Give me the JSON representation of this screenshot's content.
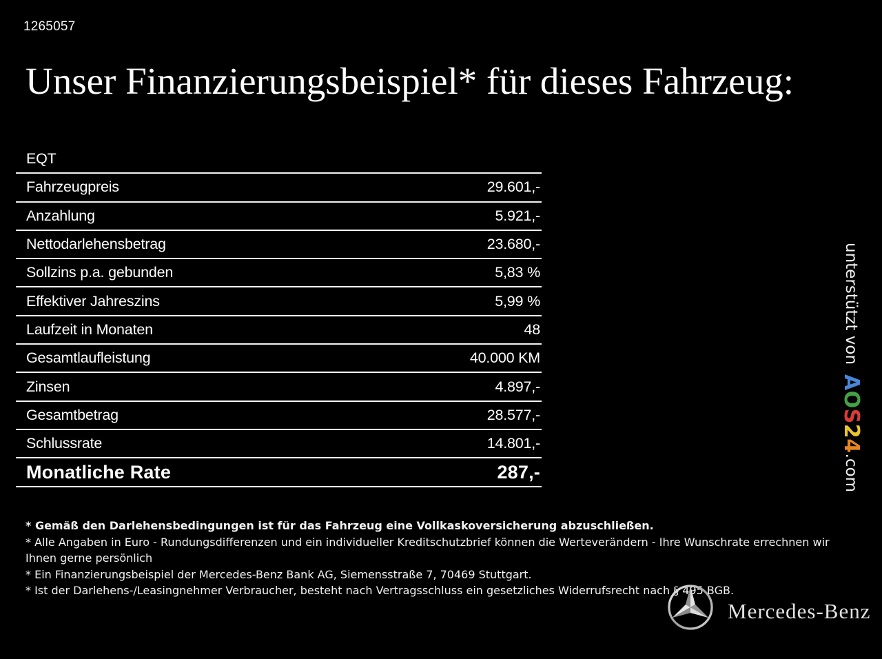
{
  "page": {
    "doc_number": "1265057",
    "title": "Unser Finanzierungsbeispiel* für dieses Fahrzeug:"
  },
  "table": {
    "model": "EQT",
    "rows": [
      {
        "label": "Fahrzeugpreis",
        "value": "29.601,-"
      },
      {
        "label": "Anzahlung",
        "value": "5.921,-"
      },
      {
        "label": "Nettodarlehensbetrag",
        "value": "23.680,-"
      },
      {
        "label": "Sollzins p.a. gebunden",
        "value": "5,83 %"
      },
      {
        "label": "Effektiver Jahreszins",
        "value": "5,99 %"
      },
      {
        "label": "Laufzeit in Monaten",
        "value": "48"
      },
      {
        "label": "Gesamtlaufleistung",
        "value": "40.000 KM"
      },
      {
        "label": "Zinsen",
        "value": "4.897,-"
      },
      {
        "label": "Gesamtbetrag",
        "value": "28.577,-"
      },
      {
        "label": "Schlussrate",
        "value": "14.801,-"
      }
    ],
    "highlight_row": {
      "label": "Monatliche Rate",
      "value": "287,-"
    }
  },
  "footnotes": [
    {
      "text": "* Gemäß den Darlehensbedingungen ist für das Fahrzeug eine Vollkaskoversicherung abzuschließen.",
      "bold": true
    },
    {
      "text": "* Alle Angaben in Euro - Rundungsdifferenzen und ein individueller Kreditschutzbrief können die Werteverändern - Ihre Wunschrate errechnen wir Ihnen gerne persönlich",
      "bold": false
    },
    {
      "text": "* Ein Finanzierungsbeispiel der Mercedes-Benz Bank AG, Siemensstraße 7, 70469 Stuttgart.",
      "bold": false
    },
    {
      "text": "* Ist der Darlehens-/Leasingnehmer Verbraucher, besteht nach Vertragsschluss ein gesetzliches Widerrufsrecht nach § 495 BGB.",
      "bold": false
    }
  ],
  "badge": {
    "prefix": "unterstützt von",
    "brand_letters": [
      {
        "char": "A",
        "color": "#4a86d8"
      },
      {
        "char": "O",
        "color": "#44a244"
      },
      {
        "char": "S",
        "color": "#da3b3b"
      },
      {
        "char": "2",
        "color": "#e9c52c"
      },
      {
        "char": "4",
        "color": "#e6871f"
      }
    ],
    "suffix": ".com"
  },
  "brand": {
    "name": "Mercedes-Benz",
    "logo_icon": "mercedes-star-icon"
  },
  "colors": {
    "background": "#000000",
    "text": "#ffffff",
    "table_line": "#f2f2f2"
  }
}
